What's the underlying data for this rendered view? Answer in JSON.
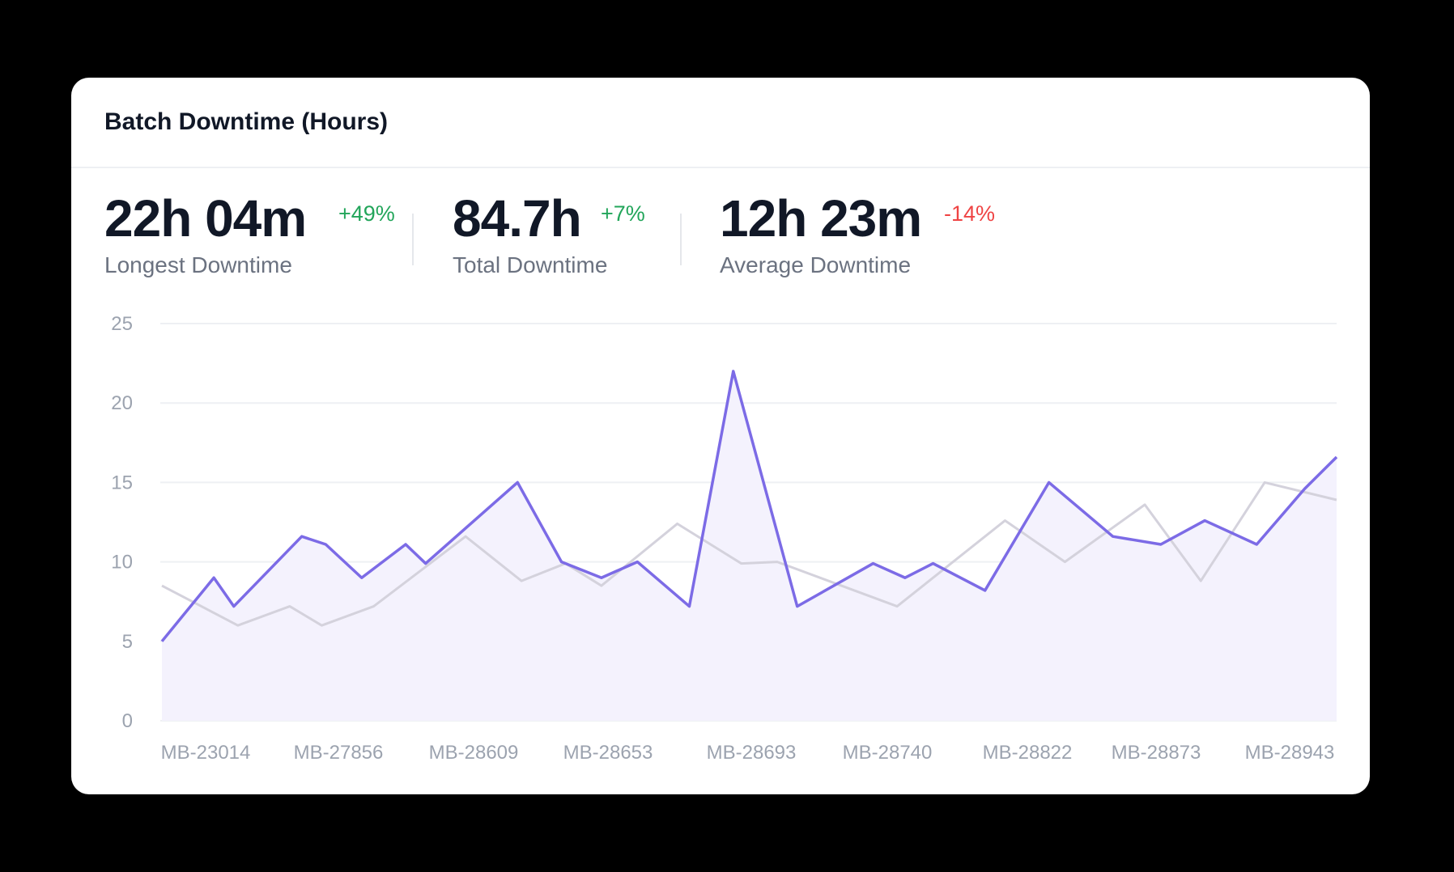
{
  "card": {
    "title": "Batch Downtime (Hours)"
  },
  "stats": [
    {
      "value": "22h 04m",
      "change": "+49%",
      "change_color": "#22a55a",
      "label": "Longest Downtime"
    },
    {
      "value": "84.7h",
      "change": "+7%",
      "change_color": "#22a55a",
      "label": "Total Downtime"
    },
    {
      "value": "12h 23m",
      "change": "-14%",
      "change_color": "#ef4444",
      "label": "Average Downtime"
    }
  ],
  "colors": {
    "primary_line": "#7c6be6",
    "primary_fill": "#f4f2fd",
    "secondary_line": "#d4d2dc",
    "grid": "#eef0f3"
  },
  "chart_data": {
    "type": "area",
    "ylim": [
      0,
      25
    ],
    "yticks": [
      "0",
      "5",
      "10",
      "15",
      "20",
      "25"
    ],
    "x_tick_labels": [
      "MB-23014",
      "MB-27856",
      "MB-28609",
      "MB-28653",
      "MB-28693",
      "MB-28740",
      "MB-28822",
      "MB-28873",
      "MB-28943"
    ],
    "grid": true,
    "series": [
      {
        "points": [
          [
            0,
            5
          ],
          [
            1.3,
            9
          ],
          [
            1.8,
            7.2
          ],
          [
            3.5,
            11.6
          ],
          [
            4.1,
            11.1
          ],
          [
            5.0,
            9.0
          ],
          [
            6.1,
            11.1
          ],
          [
            6.6,
            9.9
          ],
          [
            8.9,
            15.0
          ],
          [
            10.0,
            10.0
          ],
          [
            11.0,
            9.0
          ],
          [
            11.9,
            10.0
          ],
          [
            13.2,
            7.2
          ],
          [
            14.3,
            22.0
          ],
          [
            15.9,
            7.2
          ],
          [
            17.8,
            9.9
          ],
          [
            18.6,
            9.0
          ],
          [
            19.3,
            9.9
          ],
          [
            20.6,
            8.2
          ],
          [
            22.2,
            15.0
          ],
          [
            23.8,
            11.6
          ],
          [
            25.0,
            11.1
          ],
          [
            26.1,
            12.6
          ],
          [
            27.4,
            11.1
          ],
          [
            28.6,
            14.6
          ],
          [
            29.4,
            16.6
          ]
        ]
      },
      {
        "points": [
          [
            0,
            8.5
          ],
          [
            1.9,
            6.0
          ],
          [
            3.2,
            7.2
          ],
          [
            4.0,
            6.0
          ],
          [
            5.3,
            7.2
          ],
          [
            7.6,
            11.6
          ],
          [
            9.0,
            8.8
          ],
          [
            10.1,
            9.9
          ],
          [
            11.0,
            8.5
          ],
          [
            12.9,
            12.4
          ],
          [
            14.5,
            9.9
          ],
          [
            15.4,
            10.0
          ],
          [
            18.4,
            7.2
          ],
          [
            21.1,
            12.6
          ],
          [
            22.6,
            10.0
          ],
          [
            24.6,
            13.6
          ],
          [
            26.0,
            8.8
          ],
          [
            27.6,
            15.0
          ],
          [
            29.4,
            13.9
          ]
        ]
      }
    ]
  }
}
